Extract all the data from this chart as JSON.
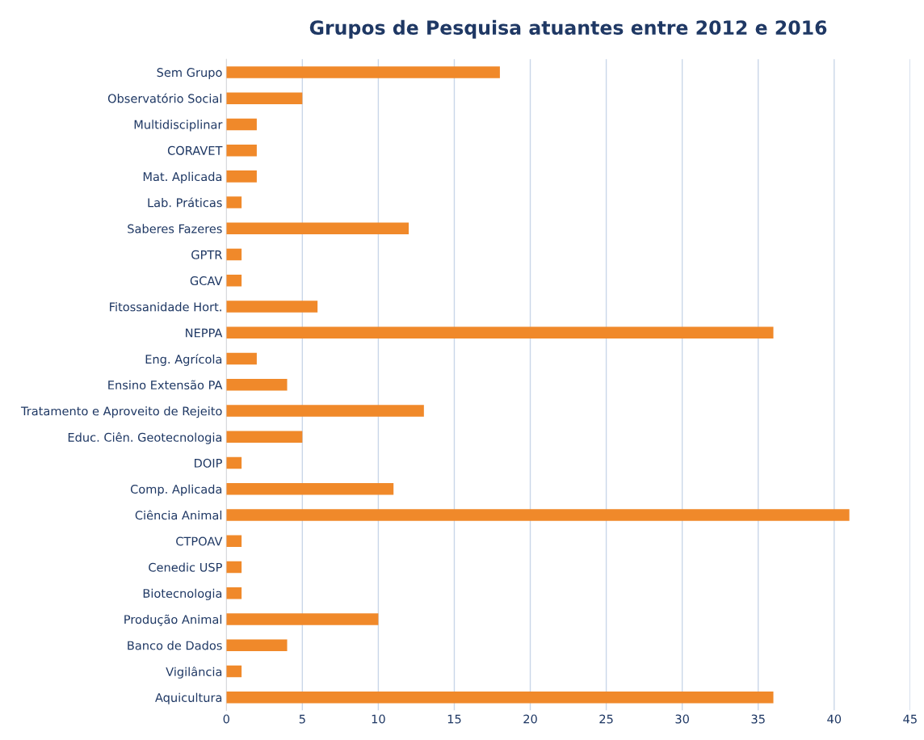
{
  "chart_data": {
    "type": "bar",
    "orientation": "horizontal",
    "title": "Grupos de Pesquisa atuantes entre 2012 e 2016",
    "categories": [
      "Sem Grupo",
      "Observatório Social",
      "Multidisciplinar",
      "CORAVET",
      "Mat. Aplicada",
      "Lab. Práticas",
      "Saberes Fazeres",
      "GPTR",
      "GCAV",
      "Fitossanidade Hort.",
      "NEPPA",
      "Eng. Agrícola",
      "Ensino Extensão PA",
      "Tratamento e Aproveito de Rejeito",
      "Educ. Ciên. Geotecnologia",
      "DOIP",
      "Comp. Aplicada",
      "Ciência Animal",
      "CTPOAV",
      "Cenedic USP",
      "Biotecnologia",
      "Produção Animal",
      "Banco de Dados",
      "Vigilância",
      "Aquicultura"
    ],
    "values": [
      18,
      5,
      2,
      2,
      2,
      1,
      12,
      1,
      1,
      6,
      36,
      2,
      4,
      13,
      5,
      1,
      11,
      41,
      1,
      1,
      1,
      10,
      4,
      1,
      36
    ],
    "color": "#f0892a",
    "xlim": [
      0,
      45
    ],
    "xticks": [
      0,
      5,
      10,
      15,
      20,
      25,
      30,
      35,
      40,
      45
    ],
    "grid": "x"
  }
}
